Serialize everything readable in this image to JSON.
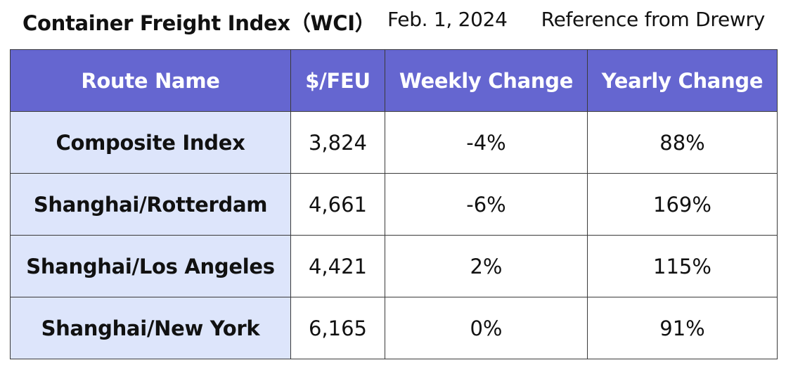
{
  "header": {
    "title": "Container Freight Index（WCI）",
    "date": "Feb. 1, 2024",
    "reference": "Reference from Drewry"
  },
  "colors": {
    "header_background": "#6566d0",
    "route_cell_background": "#dde5fb",
    "border": "#3a3a3a"
  },
  "table": {
    "columns": [
      "Route Name",
      "$/FEU",
      "Weekly Change",
      "Yearly Change"
    ],
    "rows": [
      {
        "route": "Composite Index",
        "feu": "3,824",
        "weekly": "-4%",
        "yearly": "88%"
      },
      {
        "route": "Shanghai/Rotterdam",
        "feu": "4,661",
        "weekly": "-6%",
        "yearly": "169%"
      },
      {
        "route": "Shanghai/Los Angeles",
        "feu": "4,421",
        "weekly": "2%",
        "yearly": "115%"
      },
      {
        "route": "Shanghai/New York",
        "feu": "6,165",
        "weekly": "0%",
        "yearly": "91%"
      }
    ]
  }
}
